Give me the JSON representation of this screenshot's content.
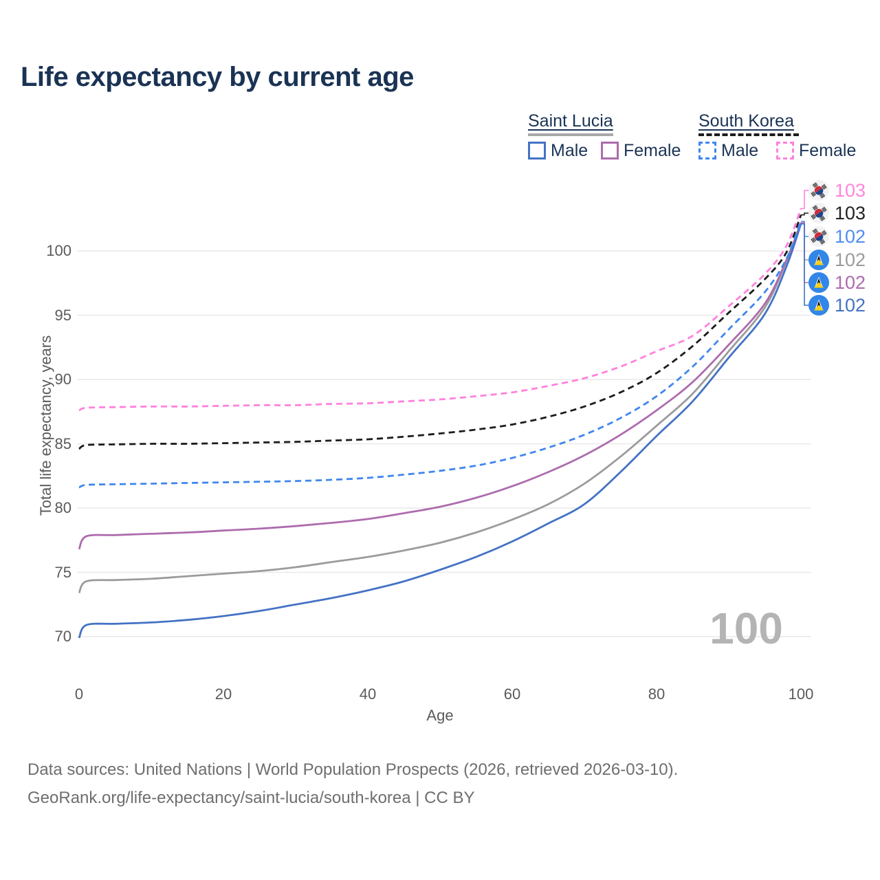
{
  "title": "Life expectancy by current age",
  "legend": {
    "groups": [
      {
        "country": "Saint Lucia",
        "line_style": "solid",
        "line_color": "#a8a8a8",
        "entries": [
          {
            "label": "Male",
            "color": "#4472c4"
          },
          {
            "label": "Female",
            "color": "#ad6cad"
          }
        ]
      },
      {
        "country": "South Korea",
        "line_style": "dashed",
        "line_color": "#1c1c1c",
        "entries": [
          {
            "label": "Male",
            "color": "#3f86ef"
          },
          {
            "label": "Female",
            "color": "#ff80dd"
          }
        ]
      }
    ]
  },
  "watermark": "100",
  "footer": {
    "line1": "Data sources: United Nations | World Population Prospects (2026, retrieved 2026-03-10).",
    "line2": "GeoRank.org/life-expectancy/saint-lucia/south-korea | CC BY"
  },
  "chart_data": {
    "type": "line",
    "title": "Life expectancy by current age",
    "xlabel": "Age",
    "ylabel": "Total life expectancy, years",
    "xlim": [
      0,
      100
    ],
    "ylim": [
      67,
      104
    ],
    "xticks": [
      0,
      20,
      40,
      60,
      80,
      100
    ],
    "yticks": [
      70,
      75,
      80,
      85,
      90,
      95,
      100
    ],
    "grid": "horizontal",
    "legend_position": "top-right",
    "x": [
      0,
      1,
      5,
      10,
      15,
      20,
      25,
      30,
      35,
      40,
      45,
      50,
      55,
      60,
      65,
      70,
      75,
      80,
      85,
      90,
      95,
      98,
      100
    ],
    "series": [
      {
        "name": "Saint Lucia Total",
        "country": "Saint Lucia",
        "sex": "Total",
        "color": "#9b9b9b",
        "dash": false,
        "values": [
          73.4,
          74.3,
          74.4,
          74.5,
          74.7,
          74.9,
          75.1,
          75.4,
          75.8,
          76.2,
          76.7,
          77.3,
          78.1,
          79.1,
          80.3,
          81.9,
          84.0,
          86.4,
          88.9,
          92.2,
          95.6,
          99.2,
          102.1
        ]
      },
      {
        "name": "Saint Lucia Female",
        "country": "Saint Lucia",
        "sex": "Female",
        "color": "#ad6cad",
        "dash": false,
        "values": [
          76.8,
          77.8,
          77.9,
          78.0,
          78.1,
          78.25,
          78.4,
          78.6,
          78.85,
          79.15,
          79.6,
          80.1,
          80.8,
          81.7,
          82.8,
          84.1,
          85.7,
          87.6,
          89.8,
          92.7,
          95.9,
          99.3,
          102.2
        ]
      },
      {
        "name": "Saint Lucia Male",
        "country": "Saint Lucia",
        "sex": "Male",
        "color": "#4472c4",
        "dash": false,
        "values": [
          69.9,
          70.9,
          71.0,
          71.1,
          71.3,
          71.6,
          72.0,
          72.5,
          73.0,
          73.6,
          74.3,
          75.2,
          76.2,
          77.4,
          78.8,
          80.3,
          82.8,
          85.6,
          88.3,
          91.7,
          95.1,
          98.8,
          102.1
        ]
      },
      {
        "name": "South Korea Male",
        "country": "South Korea",
        "sex": "Male",
        "color": "#3f86ef",
        "dash": true,
        "values": [
          81.6,
          81.8,
          81.85,
          81.9,
          81.95,
          82.0,
          82.05,
          82.1,
          82.2,
          82.35,
          82.6,
          82.9,
          83.3,
          83.9,
          84.7,
          85.7,
          87.0,
          88.7,
          91.0,
          93.9,
          96.8,
          99.4,
          102.3
        ]
      },
      {
        "name": "South Korea Total",
        "country": "South Korea",
        "sex": "Total",
        "color": "#1c1c1c",
        "dash": true,
        "values": [
          84.6,
          84.9,
          84.95,
          85.0,
          85.0,
          85.05,
          85.1,
          85.15,
          85.25,
          85.35,
          85.55,
          85.8,
          86.1,
          86.5,
          87.1,
          87.9,
          89.0,
          90.5,
          92.6,
          95.2,
          97.8,
          99.9,
          102.8
        ]
      },
      {
        "name": "South Korea Female",
        "country": "South Korea",
        "sex": "Female",
        "color": "#ff80dd",
        "dash": true,
        "values": [
          87.6,
          87.8,
          87.85,
          87.9,
          87.9,
          87.95,
          88.0,
          88.0,
          88.1,
          88.15,
          88.3,
          88.45,
          88.7,
          89.0,
          89.5,
          90.1,
          91.0,
          92.2,
          93.4,
          95.7,
          98.2,
          100.4,
          103.3
        ]
      }
    ],
    "endpoint_labels": [
      {
        "value": "103",
        "flag": "south-korea",
        "color": "#ff85dd",
        "series_index": 5
      },
      {
        "value": "103",
        "flag": "south-korea",
        "color": "#222222",
        "series_index": 4
      },
      {
        "value": "102",
        "flag": "south-korea",
        "color": "#4d8df0",
        "series_index": 3
      },
      {
        "value": "102",
        "flag": "saint-lucia",
        "color": "#9b9b9b",
        "series_index": 0
      },
      {
        "value": "102",
        "flag": "saint-lucia",
        "color": "#ad6cad",
        "series_index": 1
      },
      {
        "value": "102",
        "flag": "saint-lucia",
        "color": "#4472c4",
        "series_index": 2
      }
    ]
  }
}
